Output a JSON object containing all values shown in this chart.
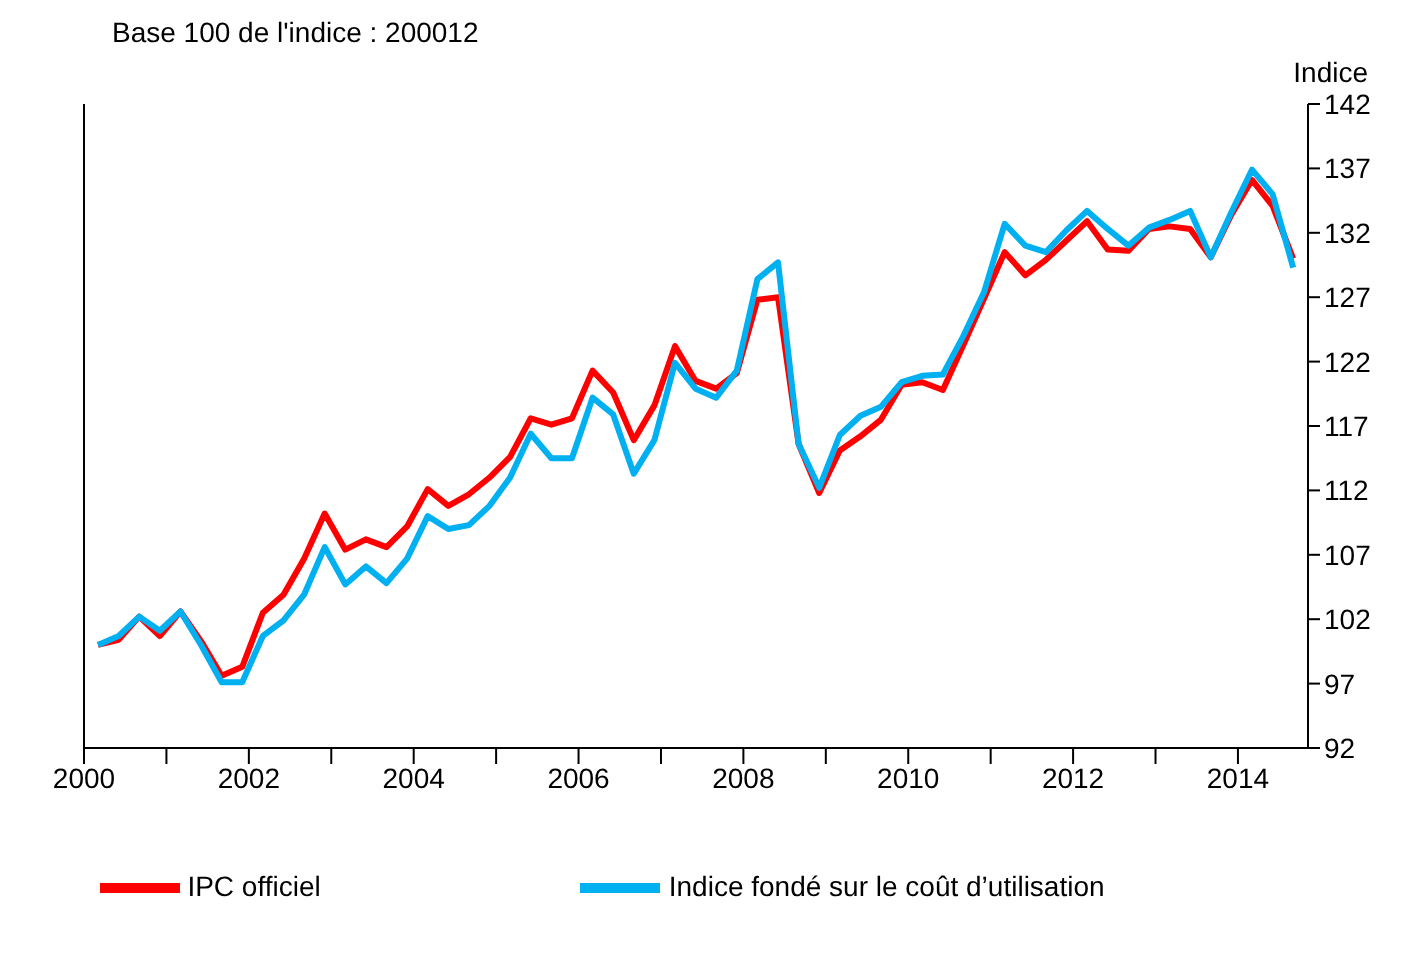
{
  "chart_data": {
    "type": "line",
    "title": "Base 100 de l'indice : 200012",
    "ylabel": "Indice",
    "x": [
      2000.17,
      2000.42,
      2000.67,
      2000.92,
      2001.17,
      2001.42,
      2001.67,
      2001.92,
      2002.17,
      2002.42,
      2002.67,
      2002.92,
      2003.17,
      2003.42,
      2003.67,
      2003.92,
      2004.17,
      2004.42,
      2004.67,
      2004.92,
      2005.17,
      2005.42,
      2005.67,
      2005.92,
      2006.17,
      2006.42,
      2006.67,
      2006.92,
      2007.17,
      2007.42,
      2007.67,
      2007.92,
      2008.17,
      2008.42,
      2008.67,
      2008.92,
      2009.17,
      2009.42,
      2009.67,
      2009.92,
      2010.17,
      2010.42,
      2010.67,
      2010.92,
      2011.17,
      2011.42,
      2011.67,
      2011.92,
      2012.17,
      2012.42,
      2012.67,
      2012.92,
      2013.17,
      2013.42,
      2013.67,
      2013.92,
      2014.17,
      2014.42,
      2014.67
    ],
    "series": [
      {
        "name": "IPC officiel",
        "color": "#ff0000",
        "values": [
          100.0,
          100.4,
          102.2,
          100.7,
          102.6,
          100.3,
          97.6,
          98.3,
          102.5,
          103.9,
          106.7,
          110.2,
          107.4,
          108.2,
          107.6,
          109.2,
          112.1,
          110.8,
          111.7,
          113.0,
          114.6,
          117.6,
          117.1,
          117.6,
          121.3,
          119.6,
          115.9,
          118.6,
          123.2,
          120.5,
          119.9,
          121.1,
          126.8,
          127.0,
          115.6,
          111.8,
          115.1,
          116.2,
          117.5,
          120.2,
          120.4,
          119.8,
          123.3,
          126.9,
          130.5,
          128.7,
          129.9,
          131.4,
          132.9,
          130.7,
          130.6,
          132.3,
          132.5,
          132.3,
          130.1,
          133.4,
          136.1,
          134.1,
          130.0
        ]
      },
      {
        "name": "Indice fondé sur le coût d’utilisation",
        "color": "#00b0f0",
        "values": [
          100.0,
          100.7,
          102.2,
          101.1,
          102.6,
          100.0,
          97.1,
          97.1,
          100.7,
          101.9,
          103.9,
          107.6,
          104.7,
          106.1,
          104.8,
          106.7,
          110.0,
          109.0,
          109.3,
          110.8,
          113.0,
          116.4,
          114.5,
          114.5,
          119.2,
          117.9,
          113.3,
          115.9,
          121.9,
          119.9,
          119.2,
          121.3,
          128.4,
          129.7,
          115.6,
          112.2,
          116.3,
          117.8,
          118.5,
          120.4,
          120.9,
          121.0,
          124.0,
          127.4,
          132.7,
          131.0,
          130.5,
          132.2,
          133.7,
          132.3,
          131.0,
          132.4,
          133.0,
          133.7,
          130.1,
          133.6,
          136.9,
          135.0,
          129.3
        ]
      }
    ],
    "xlim": [
      2000,
      2014.85
    ],
    "xticks": [
      2000,
      {
        "value": 2001,
        "label": null
      },
      2002,
      {
        "value": 2003,
        "label": null
      },
      2004,
      {
        "value": 2005,
        "label": null
      },
      2006,
      {
        "value": 2007,
        "label": null
      },
      2008,
      {
        "value": 2009,
        "label": null
      },
      2010,
      {
        "value": 2011,
        "label": null
      },
      2012,
      {
        "value": 2013,
        "label": null
      },
      2014
    ],
    "ylim": [
      92,
      142
    ],
    "yticks": [
      92,
      97,
      102,
      107,
      112,
      117,
      122,
      127,
      132,
      137,
      142
    ],
    "grid": false,
    "legend": "bottom",
    "marker": "none",
    "line_style": "solid"
  }
}
